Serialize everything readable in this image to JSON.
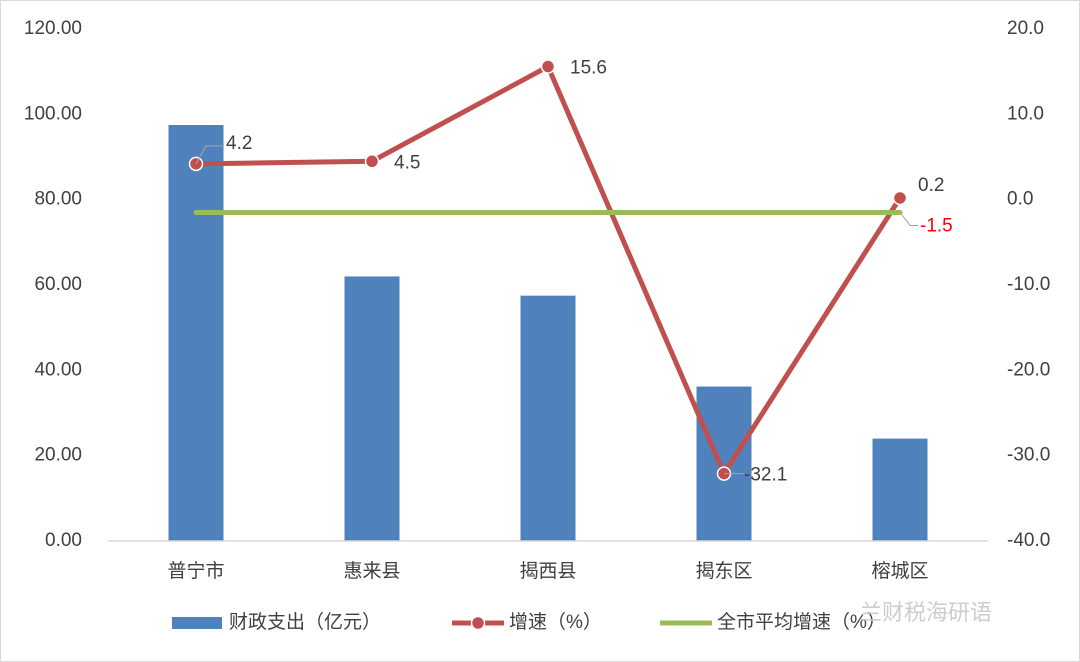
{
  "chart_data": {
    "type": "combo",
    "categories": [
      "普宁市",
      "惠来县",
      "揭西县",
      "揭东区",
      "榕城区"
    ],
    "series": [
      {
        "name": "财政支出（亿元）",
        "type": "bar",
        "color": "#4f81bd",
        "values": [
          97.5,
          62,
          57.5,
          36.2,
          24
        ]
      },
      {
        "name": "增速（%）",
        "type": "line",
        "axis": "y2",
        "color": "#c0504d",
        "markers": true,
        "values": [
          4.2,
          4.5,
          15.6,
          -32.1,
          0.2
        ]
      },
      {
        "name": "全市平均增速（%）",
        "type": "line",
        "axis": "y2",
        "color": "#9bbb59",
        "markers": false,
        "label_color": "#ff0000",
        "values": [
          -1.5,
          -1.5,
          -1.5,
          -1.5,
          -1.5
        ]
      }
    ],
    "ylim": [
      0,
      120
    ],
    "yticks": [
      {
        "value": 0,
        "label": "0.00"
      },
      {
        "value": 20,
        "label": "20.00"
      },
      {
        "value": 40,
        "label": "40.00"
      },
      {
        "value": 60,
        "label": "60.00"
      },
      {
        "value": 80,
        "label": "80.00"
      },
      {
        "value": 100,
        "label": "100.00"
      },
      {
        "value": 120,
        "label": "120.00"
      }
    ],
    "y2lim": [
      -40,
      20
    ],
    "y2ticks": [
      {
        "value": -40,
        "label": "-40.0"
      },
      {
        "value": -30,
        "label": "-30.0"
      },
      {
        "value": -20,
        "label": "-20.0"
      },
      {
        "value": -10,
        "label": "-10.0"
      },
      {
        "value": 0,
        "label": "0.0"
      },
      {
        "value": 10,
        "label": "10.0"
      },
      {
        "value": 20,
        "label": "20.0"
      }
    ],
    "grid": false,
    "legend": "bottom",
    "watermark": "兰财税海研语"
  }
}
